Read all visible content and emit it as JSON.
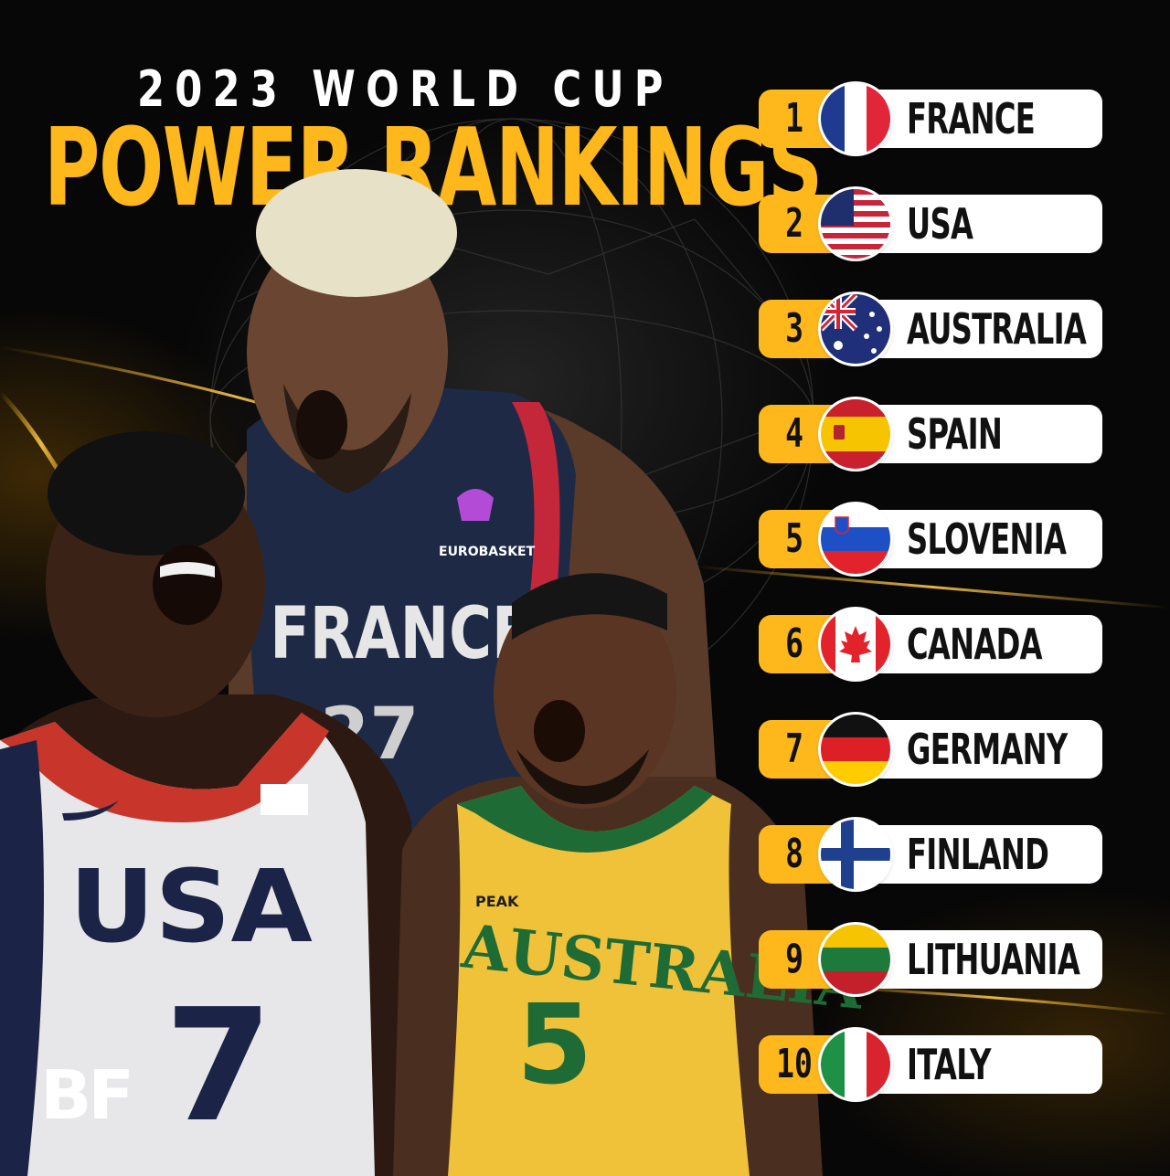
{
  "header": {
    "title_top": "2023 WORLD CUP",
    "title_main": "POWER RANKINGS"
  },
  "logo": {
    "text": "BF"
  },
  "jerseys": {
    "usa": {
      "team": "USA",
      "number": "7"
    },
    "france": {
      "team": "FRANCE",
      "number": "27",
      "badge": "EUROBASKET"
    },
    "australia": {
      "team": "AUSTRALIA",
      "number": "5",
      "brand": "PEAK"
    }
  },
  "rankings": [
    {
      "rank": "1",
      "country": "FRANCE",
      "flag": "france-flag-icon"
    },
    {
      "rank": "2",
      "country": "USA",
      "flag": "usa-flag-icon"
    },
    {
      "rank": "3",
      "country": "AUSTRALIA",
      "flag": "australia-flag-icon"
    },
    {
      "rank": "4",
      "country": "SPAIN",
      "flag": "spain-flag-icon"
    },
    {
      "rank": "5",
      "country": "SLOVENIA",
      "flag": "slovenia-flag-icon"
    },
    {
      "rank": "6",
      "country": "CANADA",
      "flag": "canada-flag-icon"
    },
    {
      "rank": "7",
      "country": "GERMANY",
      "flag": "germany-flag-icon"
    },
    {
      "rank": "8",
      "country": "FINLAND",
      "flag": "finland-flag-icon"
    },
    {
      "rank": "9",
      "country": "LITHUANIA",
      "flag": "lithuania-flag-icon"
    },
    {
      "rank": "10",
      "country": "ITALY",
      "flag": "italy-flag-icon"
    }
  ],
  "colors": {
    "accent": "#ffb81c",
    "background": "#070707",
    "pill": "#ffffff"
  }
}
